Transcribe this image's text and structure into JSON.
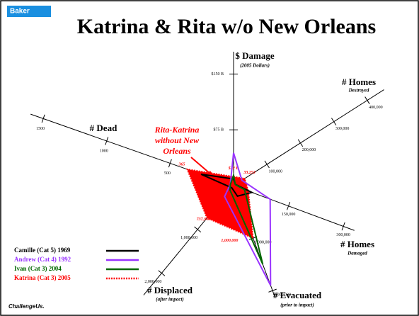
{
  "chart_data": {
    "type": "radar",
    "logo": "Baker",
    "footer_logo": "ChallengeUs.",
    "title": "Katrina & Rita w/o New Orleans",
    "annotation": "Rita-Katrina without New Orleans",
    "axes": [
      {
        "name": "$ Damage",
        "subtitle": "(2005 Dollars)",
        "lim": [
          0,
          180
        ],
        "ticks": [
          {
            "value": 75,
            "label": "$75 B"
          },
          {
            "value": 150,
            "label": "$150 B"
          }
        ]
      },
      {
        "name": "# Homes",
        "subtitle": "Destroyed",
        "lim": [
          0,
          450000
        ],
        "ticks": [
          {
            "value": 100000,
            "label": "100,000"
          },
          {
            "value": 200000,
            "label": "200,000"
          },
          {
            "value": 300000,
            "label": "300,000"
          },
          {
            "value": 400000,
            "label": "400,000"
          }
        ]
      },
      {
        "name": "# Homes",
        "subtitle": "Damaged",
        "lim": [
          0,
          330000
        ],
        "ticks": [
          {
            "value": 150000,
            "label": "150,000"
          },
          {
            "value": 300000,
            "label": "300,000"
          }
        ]
      },
      {
        "name": "# Evacuated",
        "subtitle": "(prior to impact)",
        "lim": [
          0,
          2100000
        ],
        "ticks": [
          {
            "value": 1000000,
            "label": "1,000,000"
          },
          {
            "value": 2000000,
            "label": "2,000,000"
          }
        ]
      },
      {
        "name": "# Displaced",
        "subtitle": "(after impact)",
        "lim": [
          0,
          2500000
        ],
        "ticks": [
          {
            "value": 1000000,
            "label": "1,000,000"
          },
          {
            "value": 2000000,
            "label": "2,000,000"
          }
        ]
      },
      {
        "name": "# Dead",
        "lim": [
          0,
          1600
        ],
        "ticks": [
          500,
          1000,
          1500
        ]
      }
    ],
    "series": [
      {
        "name": "Camille (Cat 5) 1969",
        "color": "#000000",
        "values": [
          9,
          5500,
          50000,
          200000,
          50000,
          256
        ]
      },
      {
        "name": "Andrew (Cat 4) 1992",
        "color": "#9933ff",
        "values": [
          44,
          25000,
          100000,
          1900000,
          250000,
          26
        ]
      },
      {
        "name": "Ivan (Cat 3) 2004",
        "color": "#006600",
        "values": [
          14,
          5000,
          30000,
          1500000,
          100000,
          25
        ]
      },
      {
        "name": "Katrina (Cat 3) 2005",
        "color": "#ff0000",
        "values": [
          12,
          33253,
          40000,
          1000000,
          737940,
          365
        ],
        "value_labels": [
          "$12 B",
          "33,253",
          null,
          "1,000,000",
          "737,940",
          "365"
        ]
      }
    ]
  }
}
